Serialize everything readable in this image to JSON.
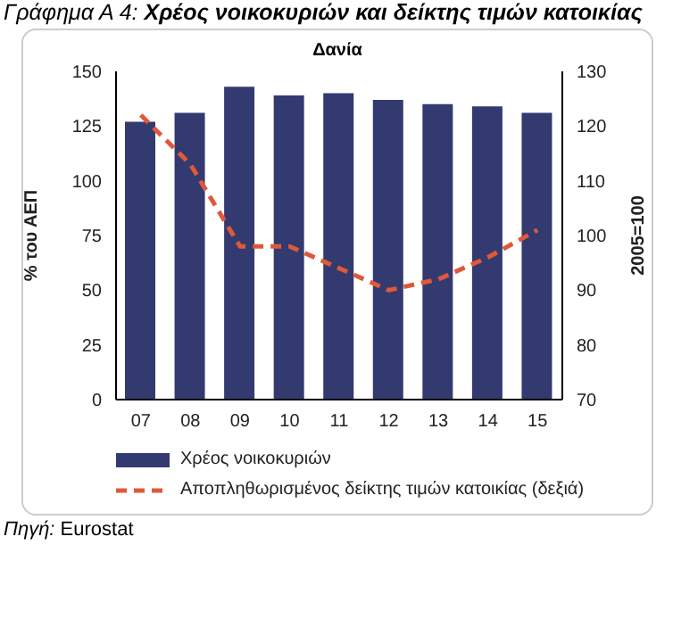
{
  "chart_data": {
    "type": "bar",
    "title": "Γράφημα Α 4: Χρέος νοικοκυριών και δείκτης τιμών κατοικίας",
    "subtitle": "Δανία",
    "ylabel": "% του ΑΕΠ",
    "y2label": "2005=100",
    "categories": [
      "07",
      "08",
      "09",
      "10",
      "11",
      "12",
      "13",
      "14",
      "15"
    ],
    "series": [
      {
        "name": "Χρέος νοικοκυριών",
        "color": "#333a70",
        "values": [
          127,
          131,
          143,
          139,
          140,
          137,
          135,
          134,
          131
        ]
      },
      {
        "name": "Αποπληθωρισμένος δείκτης τιμών κατοικίας (δεξιά)",
        "type": "line",
        "axis": "y2",
        "color": "#e0583a",
        "line_style": "dashed",
        "values": [
          122,
          113,
          98,
          98,
          94,
          90,
          92,
          96,
          101
        ]
      }
    ],
    "ylim": [
      0,
      150
    ],
    "yticks": [
      0,
      25,
      50,
      75,
      100,
      125,
      150
    ],
    "y2lim": [
      70,
      130
    ],
    "y2ticks": [
      70,
      80,
      90,
      100,
      110,
      120,
      130
    ],
    "legend": "bottom",
    "marker": "none",
    "annotations": [
      "Πηγή: Eurostat"
    ]
  }
}
